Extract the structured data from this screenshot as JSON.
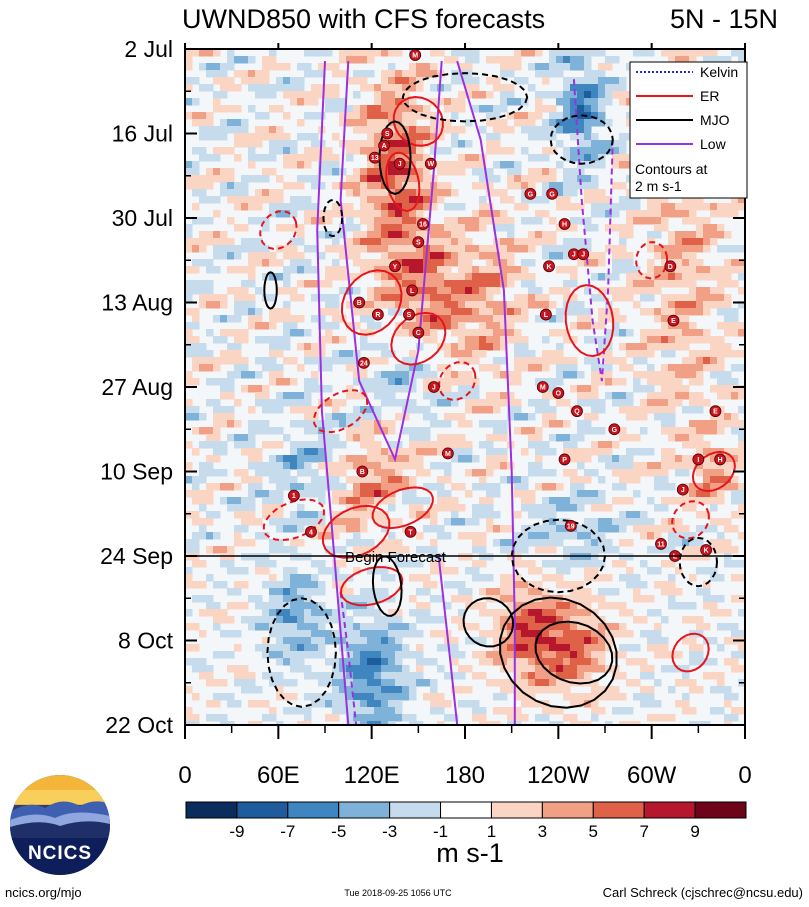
{
  "chart_data": {
    "type": "heatmap",
    "title": "UWND850 with CFS forecasts",
    "region": "5N - 15N",
    "y_tick_labels": [
      "2 Jul",
      "16 Jul",
      "30 Jul",
      "13 Aug",
      "27 Aug",
      "10 Sep",
      "24 Sep",
      "8 Oct",
      "22 Oct"
    ],
    "x_tick_labels": [
      "0",
      "60E",
      "120E",
      "180",
      "120W",
      "60W",
      "0"
    ],
    "x_range_deg_east": [
      0,
      360
    ],
    "y_range_days_from_2jul": [
      0,
      112
    ],
    "forecast_line_day": 84,
    "forecast_label": "Begin Forecast",
    "colorbar": {
      "labels": [
        "-9",
        "-7",
        "-5",
        "-3",
        "-1",
        "1",
        "3",
        "5",
        "7",
        "9"
      ],
      "units": "m s-1",
      "colors": [
        "#0a2d5e",
        "#1f5c9c",
        "#3f86c0",
        "#7fb2d8",
        "#c6dcec",
        "#ffffff",
        "#fbd5c3",
        "#f1a085",
        "#df6248",
        "#b6172d",
        "#6e0419"
      ]
    },
    "legend": {
      "entries": [
        {
          "name": "Kelvin",
          "color": "#2a2ad6",
          "style": "dotted"
        },
        {
          "name": "ER",
          "color": "#e8141c",
          "style": "solid"
        },
        {
          "name": "MJO",
          "color": "#000000",
          "style": "solid"
        },
        {
          "name": "Low",
          "color": "#9b30e0",
          "style": "solid"
        }
      ],
      "note_line1": "Contours at",
      "note_line2": "2 m s-1",
      "placement": "top-right"
    },
    "storm_labels": [
      "M",
      "S",
      "A",
      "13",
      "J",
      "W",
      "G",
      "G",
      "16",
      "S",
      "Y",
      "H",
      "J",
      "J",
      "D",
      "K",
      "L",
      "B",
      "R",
      "S",
      "C",
      "L",
      "E",
      "24",
      "J",
      "M",
      "O",
      "Q",
      "G",
      "E",
      "M",
      "B",
      "P",
      "I",
      "H",
      "J",
      "1",
      "4",
      "T",
      "19",
      "11",
      "L",
      "K"
    ]
  },
  "footer": {
    "site": "ncics.org/mjo",
    "timestamp": "Tue 2018-09-25 1056 UTC",
    "author": "Carl Schreck (cjschrec@ncsu.edu)",
    "logo_text": "NCICS"
  }
}
